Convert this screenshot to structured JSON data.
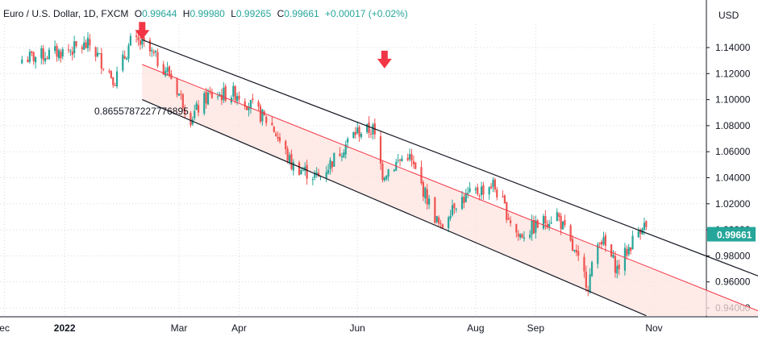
{
  "legend": {
    "symbol": "Euro / U.S. Dollar, 1D, FXCM",
    "open_label": "O",
    "open": "0.99644",
    "high_label": "H",
    "high": "0.99980",
    "low_label": "L",
    "low": "0.99265",
    "close_label": "C",
    "close": "0.99661",
    "change": "+0.00017 (+0.02%)"
  },
  "annotation": "0.8655787227776895",
  "currency": "USD",
  "last_price_label": "0.99661",
  "colors": {
    "up": "#26a69a",
    "down": "#ef5350",
    "arrow": "#f23645",
    "channel_line": "#131722",
    "mid_line": "#f23645",
    "channel_fill": "#fde3df",
    "grid": "#d9d9d9",
    "badge": "#26a69a"
  },
  "chart_data": {
    "type": "candlestick",
    "title": "Euro / U.S. Dollar, 1D, FXCM",
    "ylabel": "USD",
    "ylim": [
      0.93,
      1.155
    ],
    "y_ticks": [
      "1.14000",
      "1.12000",
      "1.10000",
      "1.08000",
      "1.06000",
      "1.04000",
      "1.02000",
      "1.00000",
      "0.98000",
      "0.96000",
      "0.94000"
    ],
    "x_ticks": [
      {
        "label": "ec",
        "date": "2021-12-01"
      },
      {
        "label": "2022",
        "date": "2022-01-01"
      },
      {
        "label": "Mar",
        "date": "2022-03-01"
      },
      {
        "label": "Apr",
        "date": "2022-04-01"
      },
      {
        "label": "Jun",
        "date": "2022-06-01"
      },
      {
        "label": "Aug",
        "date": "2022-08-01"
      },
      {
        "label": "Sep",
        "date": "2022-09-01"
      },
      {
        "label": "Nov",
        "date": "2022-11-01"
      }
    ],
    "grid": true,
    "close_path": [
      [
        "2021-12-10",
        1.131
      ],
      [
        "2021-12-31",
        1.137
      ],
      [
        "2022-01-14",
        1.142
      ],
      [
        "2022-01-27",
        1.115
      ],
      [
        "2022-02-04",
        1.144
      ],
      [
        "2022-02-10",
        1.143
      ],
      [
        "2022-02-24",
        1.12
      ],
      [
        "2022-03-07",
        1.086
      ],
      [
        "2022-03-16",
        1.103
      ],
      [
        "2022-03-31",
        1.105
      ],
      [
        "2022-04-18",
        1.08
      ],
      [
        "2022-04-28",
        1.05
      ],
      [
        "2022-05-12",
        1.04
      ],
      [
        "2022-05-31",
        1.075
      ],
      [
        "2022-06-09",
        1.077
      ],
      [
        "2022-06-14",
        1.043
      ],
      [
        "2022-06-27",
        1.058
      ],
      [
        "2022-07-14",
        1.0
      ],
      [
        "2022-07-20",
        1.02
      ],
      [
        "2022-08-10",
        1.035
      ],
      [
        "2022-08-23",
        0.995
      ],
      [
        "2022-09-12",
        1.012
      ],
      [
        "2022-09-28",
        0.958
      ],
      [
        "2022-10-04",
        0.995
      ],
      [
        "2022-10-13",
        0.97
      ],
      [
        "2022-10-26",
        1.005
      ],
      [
        "2022-10-31",
        0.996
      ]
    ],
    "channel": {
      "upper": {
        "start": [
          "2022-02-10",
          1.146
        ],
        "end": [
          "2022-12-31",
          0.961
        ]
      },
      "middle": {
        "start": [
          "2022-02-10",
          1.127
        ],
        "end": [
          "2022-12-31",
          0.934
        ]
      },
      "lower": {
        "start": [
          "2022-02-10",
          1.1
        ],
        "end": [
          "2022-10-28",
          0.934
        ]
      }
    },
    "annotations": [
      {
        "type": "arrow-down",
        "date": "2022-02-10",
        "value": 1.146
      },
      {
        "type": "arrow-down",
        "date": "2022-06-15",
        "value": 1.124
      }
    ]
  }
}
